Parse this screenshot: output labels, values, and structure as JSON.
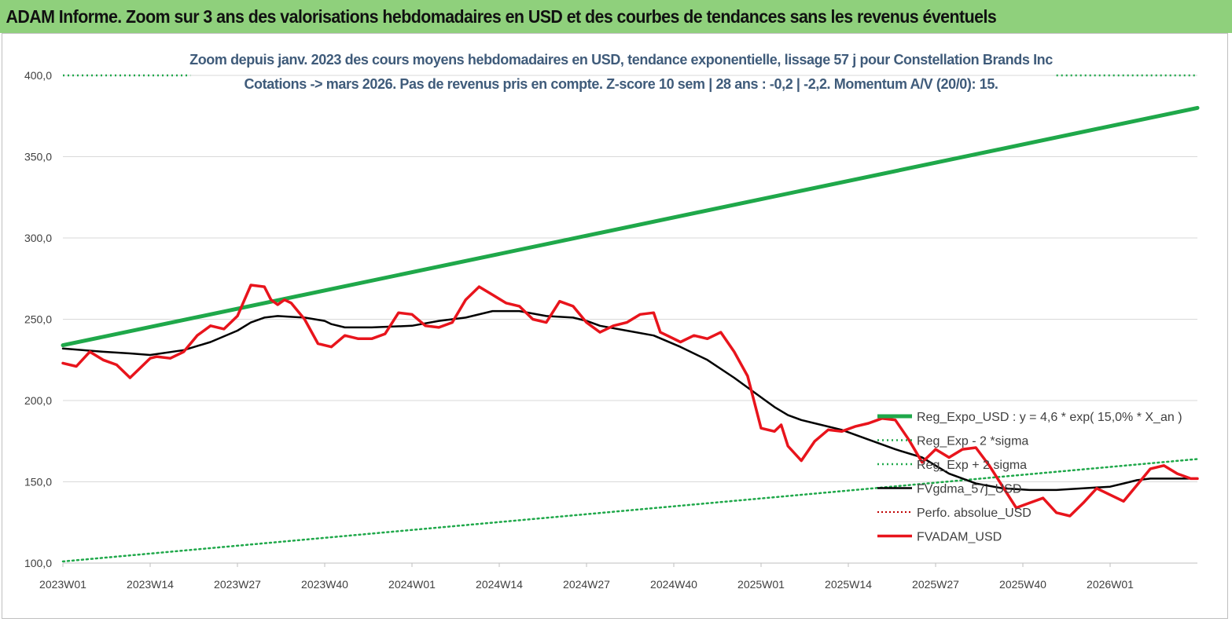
{
  "header": {
    "title": "ADAM Informe. Zoom sur 3 ans des valorisations hebdomadaires en USD et des courbes de tendances sans les revenus éventuels"
  },
  "chart_data": {
    "type": "line",
    "title_line1": "Zoom depuis janv. 2023 des cours moyens hebdomadaires en USD, tendance exponentielle, lissage 57 j pour Constellation Brands Inc",
    "title_line2": "Cotations -> mars 2026. Pas de revenus pris en compte. Z-score 10 sem | 28 ans : -0,2 | -2,2. Momentum A/V (20/0): 15.",
    "ylim": [
      100,
      400
    ],
    "y_ticks": [
      "100,0",
      "150,0",
      "200,0",
      "250,0",
      "300,0",
      "350,0",
      "400,0"
    ],
    "x_ticks": [
      "2023W01",
      "2023W14",
      "2023W27",
      "2023W40",
      "2024W01",
      "2024W14",
      "2024W27",
      "2024W40",
      "2025W01",
      "2025W14",
      "2025W27",
      "2025W40",
      "2026W01"
    ],
    "x_range_weeks": [
      0,
      169
    ],
    "grid": "horizontal",
    "legend_position": "bottom-right",
    "colors": {
      "expo": "#1fa84a",
      "sigma": "#1fa84a",
      "fvgdma": "#000000",
      "perfo": "#c00000",
      "fvadam": "#e8141c"
    },
    "series": [
      {
        "name": "Reg_Expo_USD : y = 4,6 * exp( 15,0% *  X_an )",
        "key": "expo",
        "x": [
          0,
          169
        ],
        "values": [
          234,
          380
        ]
      },
      {
        "name": "Reg_Exp - 2 *sigma",
        "key": "sigma_minus",
        "x": [
          0,
          169
        ],
        "values": [
          101,
          164
        ]
      },
      {
        "name": "Reg_Exp + 2 sigma",
        "key": "sigma_plus",
        "x": [
          0,
          19,
          148,
          169
        ],
        "values": [
          400,
          400,
          400,
          400
        ]
      },
      {
        "name": "FVgdma_57j_USD",
        "key": "fvgdma",
        "x": [
          0,
          6,
          10,
          13,
          18,
          22,
          26,
          28,
          30,
          32,
          36,
          39,
          40,
          42,
          44,
          46,
          52,
          56,
          60,
          64,
          68,
          72,
          76,
          78,
          80,
          84,
          88,
          92,
          96,
          100,
          104,
          106,
          108,
          110,
          112,
          116,
          120,
          124,
          128,
          130,
          132,
          136,
          140,
          144,
          146,
          148,
          152,
          156,
          158,
          160,
          162,
          164,
          168,
          169
        ],
        "values": [
          232,
          230,
          229,
          228,
          231,
          236,
          243,
          248,
          251,
          252,
          251,
          249,
          247,
          245,
          245,
          245,
          246,
          249,
          251,
          255,
          255,
          252,
          251,
          249,
          246,
          243,
          240,
          233,
          225,
          214,
          202,
          196,
          191,
          188,
          186,
          182,
          176,
          170,
          165,
          160,
          155,
          149,
          146,
          145,
          145,
          145,
          146,
          147,
          149,
          151,
          152,
          152,
          152,
          152
        ]
      },
      {
        "name": "Perfo. absolue_USD",
        "key": "perfo",
        "x": [],
        "values": []
      },
      {
        "name": "FVADAM_USD",
        "key": "fvadam",
        "x": [
          0,
          2,
          4,
          6,
          8,
          10,
          12,
          13,
          14,
          16,
          18,
          20,
          22,
          24,
          26,
          28,
          30,
          31,
          32,
          33,
          34,
          36,
          38,
          40,
          42,
          44,
          46,
          48,
          50,
          52,
          54,
          56,
          58,
          60,
          62,
          64,
          66,
          68,
          70,
          72,
          74,
          76,
          78,
          80,
          82,
          84,
          86,
          88,
          89,
          90,
          92,
          94,
          96,
          98,
          100,
          102,
          104,
          106,
          107,
          108,
          110,
          112,
          114,
          116,
          118,
          120,
          122,
          124,
          126,
          128,
          130,
          132,
          134,
          136,
          138,
          140,
          142,
          144,
          146,
          148,
          150,
          152,
          154,
          156,
          158,
          160,
          162,
          164,
          166,
          168,
          169
        ],
        "values": [
          223,
          221,
          230,
          225,
          222,
          214,
          222,
          226,
          227,
          226,
          230,
          240,
          246,
          244,
          252,
          271,
          270,
          262,
          259,
          262,
          260,
          250,
          235,
          233,
          240,
          238,
          238,
          241,
          254,
          253,
          246,
          245,
          248,
          262,
          270,
          265,
          260,
          258,
          250,
          248,
          261,
          258,
          248,
          242,
          246,
          248,
          253,
          254,
          242,
          240,
          236,
          240,
          238,
          242,
          230,
          215,
          183,
          181,
          185,
          172,
          163,
          175,
          182,
          181,
          184,
          186,
          189,
          188,
          176,
          162,
          170,
          165,
          170,
          171,
          160,
          147,
          134,
          137,
          140,
          131,
          129,
          137,
          146,
          142,
          138,
          148,
          158,
          160,
          155,
          152,
          152
        ]
      }
    ]
  }
}
